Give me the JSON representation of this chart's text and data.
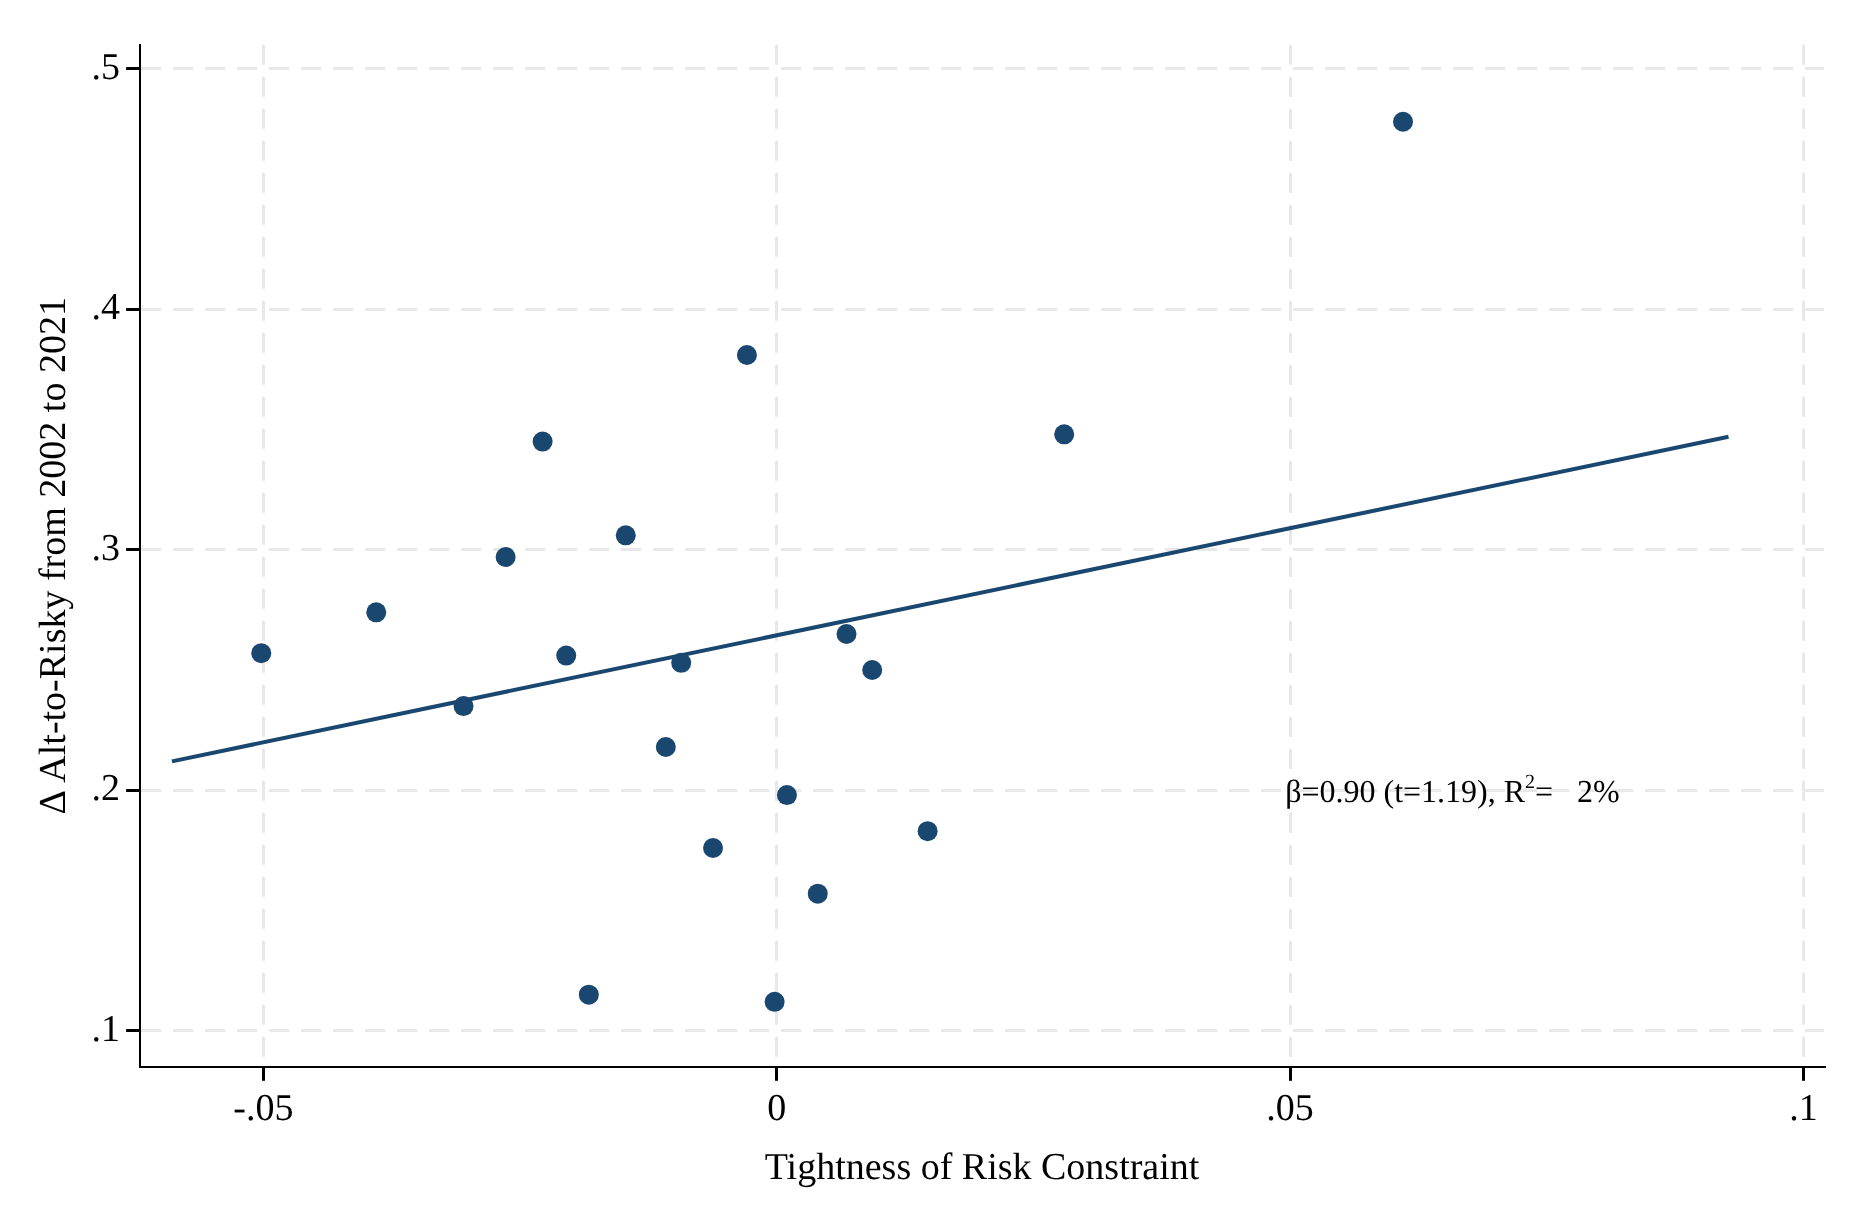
{
  "chart_data": {
    "type": "scatter",
    "xlabel": "Tightness of Risk Constraint",
    "ylabel": "Δ Alt-to-Risky from 2002 to 2021",
    "annotations": [
      "β=0.90 (t=1.19), R$^{2}$=   2%"
    ],
    "xlim": [
      -0.062,
      0.102
    ],
    "ylim": [
      0.085,
      0.51
    ],
    "xticks": [
      {
        "value": -0.05,
        "label": "-.05"
      },
      0,
      {
        "value": 0.05,
        "label": ".05"
      },
      {
        "value": 0.1,
        "label": ".1"
      }
    ],
    "yticks": [
      {
        "value": 0.1,
        "label": ".1"
      },
      {
        "value": 0.2,
        "label": ".2"
      },
      {
        "value": 0.3,
        "label": ".3"
      },
      {
        "value": 0.4,
        "label": ".4"
      },
      {
        "value": 0.5,
        "label": ".5"
      }
    ],
    "grid": true,
    "legend": false,
    "marker": "circle",
    "series": [
      {
        "color": "#1a476f",
        "x": [
          -0.0502,
          -0.039,
          -0.0305,
          -0.0264,
          -0.0228,
          -0.0205,
          -0.0183,
          -0.0147,
          -0.0108,
          -0.0093,
          -0.0062,
          -0.0029,
          -0.0002,
          0.001,
          0.004,
          0.0068,
          0.0093,
          0.0147,
          0.028,
          0.061
        ],
        "values": [
          0.257,
          0.274,
          0.235,
          0.297,
          0.345,
          0.256,
          0.115,
          0.306,
          0.218,
          0.253,
          0.176,
          0.381,
          0.112,
          0.198,
          0.157,
          0.265,
          0.25,
          0.183,
          0.348,
          0.478
        ]
      },
      {
        "type": "line",
        "color": "#1a476f",
        "x": [
          -0.0589,
          0.0927
        ],
        "values": [
          0.212,
          0.347
        ],
        "marker": "none"
      }
    ]
  }
}
